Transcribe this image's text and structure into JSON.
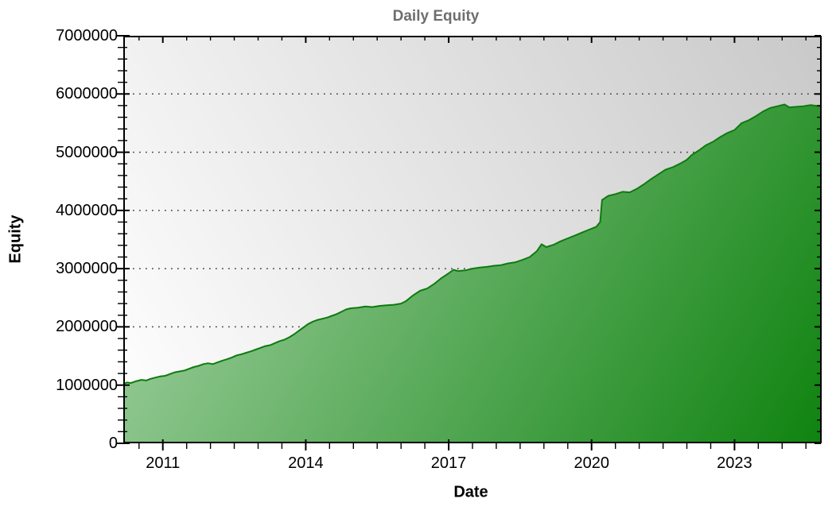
{
  "figure": {
    "title": "Daily Equity",
    "x_axis_label": "Date",
    "y_axis_label": "Equity"
  },
  "chart_data": {
    "type": "area",
    "title": "Daily Equity",
    "xlabel": "Date",
    "ylabel": "Equity",
    "xlim": [
      2010.17,
      2024.83
    ],
    "ylim": [
      0,
      7000000
    ],
    "x_tick_values": [
      2011,
      2014,
      2017,
      2020,
      2023
    ],
    "x_tick_labels": [
      "2011",
      "2014",
      "2017",
      "2020",
      "2023"
    ],
    "x_minor_tick_step": 0.5,
    "y_tick_values": [
      0,
      1000000,
      2000000,
      3000000,
      4000000,
      5000000,
      6000000,
      7000000
    ],
    "y_tick_labels": [
      "0",
      "1000000",
      "2000000",
      "3000000",
      "4000000",
      "5000000",
      "6000000",
      "7000000"
    ],
    "y_minor_tick_step": 200000,
    "grid": {
      "style": "horizontal-dotted",
      "at": [
        1000000,
        2000000,
        3000000,
        4000000,
        5000000,
        6000000
      ]
    },
    "legend": "none",
    "colors": {
      "line": "#0e7b0e",
      "fill_light": "#b2d9b2",
      "fill_dark": "#0f8310",
      "plot_bg_light": "#ffffff",
      "plot_bg_dark": "#c9c9c9",
      "frame": "#000000",
      "grid_dot": "#3a3a3a",
      "title": "#6e6e6e"
    },
    "series": [
      {
        "name": "Daily Equity",
        "x": [
          2010.17,
          2010.25,
          2010.33,
          2010.45,
          2010.55,
          2010.65,
          2010.75,
          2010.85,
          2010.95,
          2011.05,
          2011.15,
          2011.25,
          2011.35,
          2011.45,
          2011.55,
          2011.65,
          2011.75,
          2011.85,
          2011.95,
          2012.05,
          2012.15,
          2012.25,
          2012.35,
          2012.45,
          2012.55,
          2012.65,
          2012.75,
          2012.85,
          2012.95,
          2013.05,
          2013.15,
          2013.25,
          2013.35,
          2013.45,
          2013.55,
          2013.65,
          2013.75,
          2013.85,
          2013.95,
          2014.05,
          2014.15,
          2014.25,
          2014.35,
          2014.45,
          2014.55,
          2014.65,
          2014.75,
          2014.85,
          2014.95,
          2015.1,
          2015.25,
          2015.4,
          2015.55,
          2015.7,
          2015.85,
          2016.0,
          2016.1,
          2016.25,
          2016.4,
          2016.55,
          2016.7,
          2016.85,
          2017.0,
          2017.1,
          2017.2,
          2017.35,
          2017.5,
          2017.65,
          2017.8,
          2017.95,
          2018.1,
          2018.25,
          2018.4,
          2018.55,
          2018.7,
          2018.85,
          2018.95,
          2019.05,
          2019.2,
          2019.35,
          2019.5,
          2019.65,
          2019.8,
          2019.95,
          2020.1,
          2020.18,
          2020.22,
          2020.35,
          2020.5,
          2020.65,
          2020.8,
          2020.95,
          2021.1,
          2021.25,
          2021.4,
          2021.55,
          2021.7,
          2021.85,
          2022.0,
          2022.1,
          2022.25,
          2022.4,
          2022.55,
          2022.7,
          2022.85,
          2023.0,
          2023.15,
          2023.3,
          2023.45,
          2023.6,
          2023.75,
          2023.9,
          2024.05,
          2024.15,
          2024.3,
          2024.45,
          2024.6,
          2024.78
        ],
        "y": [
          1020000,
          1045000,
          1035000,
          1070000,
          1090000,
          1080000,
          1110000,
          1130000,
          1150000,
          1160000,
          1190000,
          1220000,
          1235000,
          1250000,
          1280000,
          1310000,
          1330000,
          1360000,
          1375000,
          1360000,
          1390000,
          1420000,
          1445000,
          1475000,
          1510000,
          1530000,
          1555000,
          1580000,
          1610000,
          1640000,
          1670000,
          1685000,
          1720000,
          1755000,
          1780000,
          1820000,
          1870000,
          1930000,
          1990000,
          2050000,
          2090000,
          2120000,
          2140000,
          2160000,
          2190000,
          2220000,
          2260000,
          2300000,
          2320000,
          2330000,
          2350000,
          2340000,
          2360000,
          2370000,
          2380000,
          2400000,
          2440000,
          2540000,
          2620000,
          2660000,
          2740000,
          2840000,
          2920000,
          2980000,
          2960000,
          2970000,
          3000000,
          3020000,
          3030000,
          3050000,
          3060000,
          3090000,
          3110000,
          3150000,
          3200000,
          3300000,
          3420000,
          3370000,
          3410000,
          3470000,
          3520000,
          3570000,
          3620000,
          3670000,
          3720000,
          3800000,
          4180000,
          4250000,
          4280000,
          4320000,
          4310000,
          4370000,
          4450000,
          4540000,
          4620000,
          4700000,
          4740000,
          4800000,
          4870000,
          4950000,
          5030000,
          5120000,
          5180000,
          5260000,
          5330000,
          5380000,
          5500000,
          5550000,
          5620000,
          5700000,
          5760000,
          5790000,
          5820000,
          5770000,
          5780000,
          5790000,
          5810000,
          5790000
        ]
      }
    ]
  }
}
